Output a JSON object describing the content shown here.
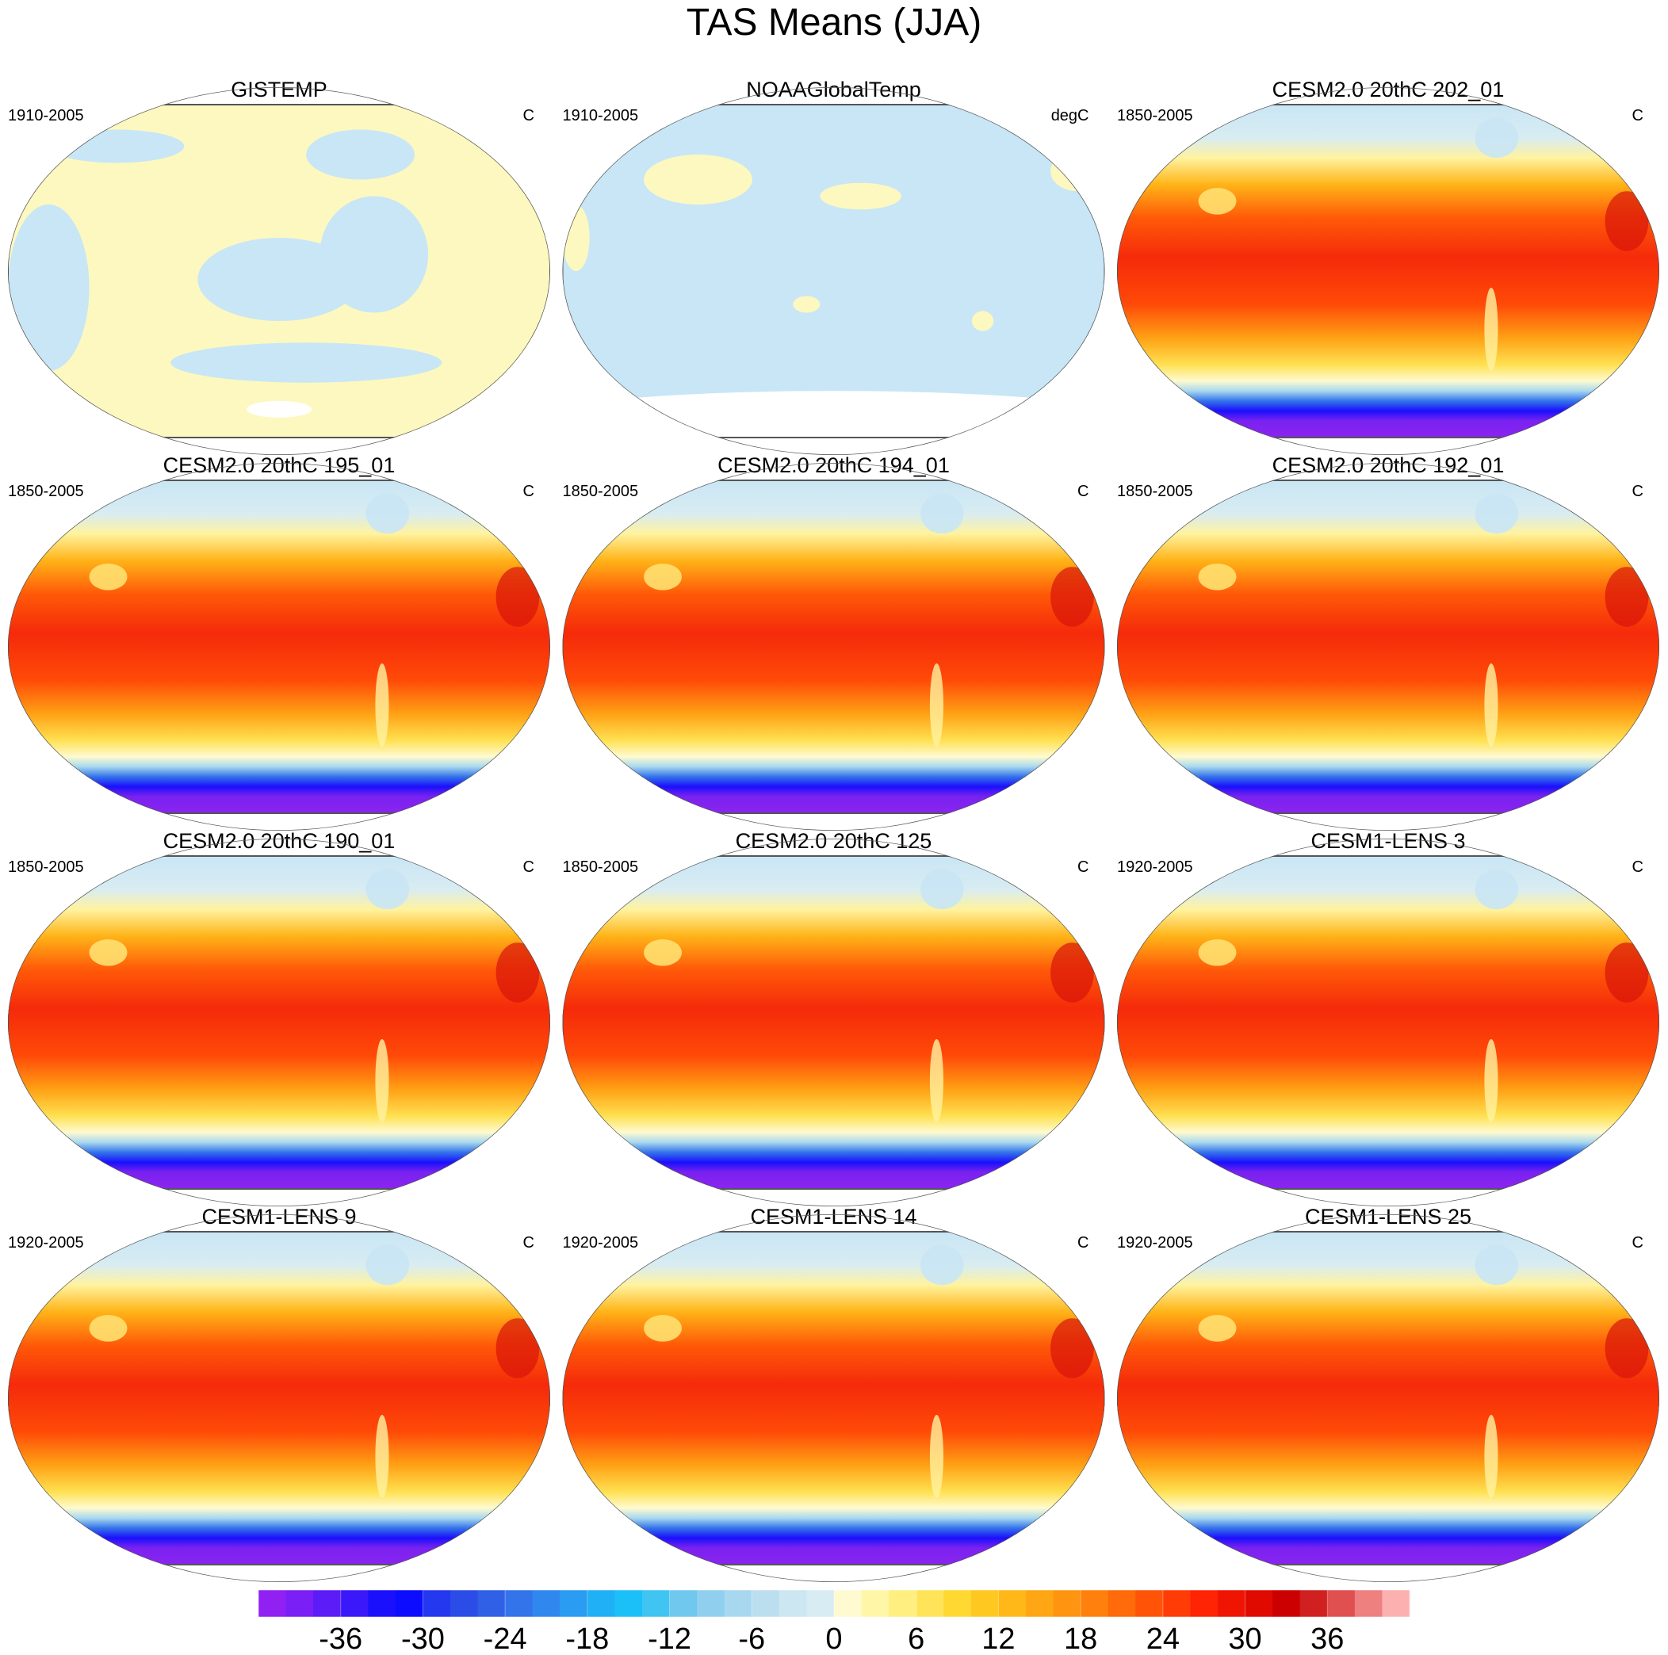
{
  "title": "TAS Means (JJA)",
  "panels": [
    {
      "title": "GISTEMP",
      "left": "1910-2005",
      "right": "C"
    },
    {
      "title": "NOAAGlobalTemp",
      "left": "1910-2005",
      "right": "degC"
    },
    {
      "title": "CESM2.0 20thC 202_01",
      "left": "1850-2005",
      "right": "C"
    },
    {
      "title": "CESM2.0 20thC 195_01",
      "left": "1850-2005",
      "right": "C"
    },
    {
      "title": "CESM2.0 20thC 194_01",
      "left": "1850-2005",
      "right": "C"
    },
    {
      "title": "CESM2.0 20thC 192_01",
      "left": "1850-2005",
      "right": "C"
    },
    {
      "title": "CESM2.0 20thC 190_01",
      "left": "1850-2005",
      "right": "C"
    },
    {
      "title": "CESM2.0 20thC 125",
      "left": "1850-2005",
      "right": "C"
    },
    {
      "title": "CESM1-LENS 3",
      "left": "1920-2005",
      "right": "C"
    },
    {
      "title": "CESM1-LENS 9",
      "left": "1920-2005",
      "right": "C"
    },
    {
      "title": "CESM1-LENS 14",
      "left": "1920-2005",
      "right": "C"
    },
    {
      "title": "CESM1-LENS 25",
      "left": "1920-2005",
      "right": "C"
    }
  ],
  "colorbar": {
    "xlim": [
      -42,
      42
    ],
    "xticks": [
      -36,
      -30,
      -24,
      -18,
      -12,
      -6,
      0,
      6,
      12,
      18,
      24,
      30,
      36
    ],
    "colors": [
      "#9021f2",
      "#7a1ff5",
      "#5c1cf7",
      "#3a18fa",
      "#1a10fc",
      "#0c0cff",
      "#2438f0",
      "#2c4ce8",
      "#3060e6",
      "#3474ea",
      "#3088ee",
      "#2a9cf2",
      "#20b0f5",
      "#1cc0f8",
      "#40c4f2",
      "#70c8ee",
      "#90d0ee",
      "#a8d8ef",
      "#bcdff0",
      "#cce6f2",
      "#d8ecf4",
      "#fffad0",
      "#fff6a8",
      "#ffef80",
      "#ffe45a",
      "#ffd832",
      "#ffc820",
      "#ffb818",
      "#ffa614",
      "#ff9410",
      "#ff800c",
      "#ff6a0a",
      "#ff5408",
      "#ff3c06",
      "#ff2404",
      "#f01402",
      "#e00a00",
      "#cc0000",
      "#d02020",
      "#e05050",
      "#ee8080",
      "#fcb0b0"
    ]
  }
}
